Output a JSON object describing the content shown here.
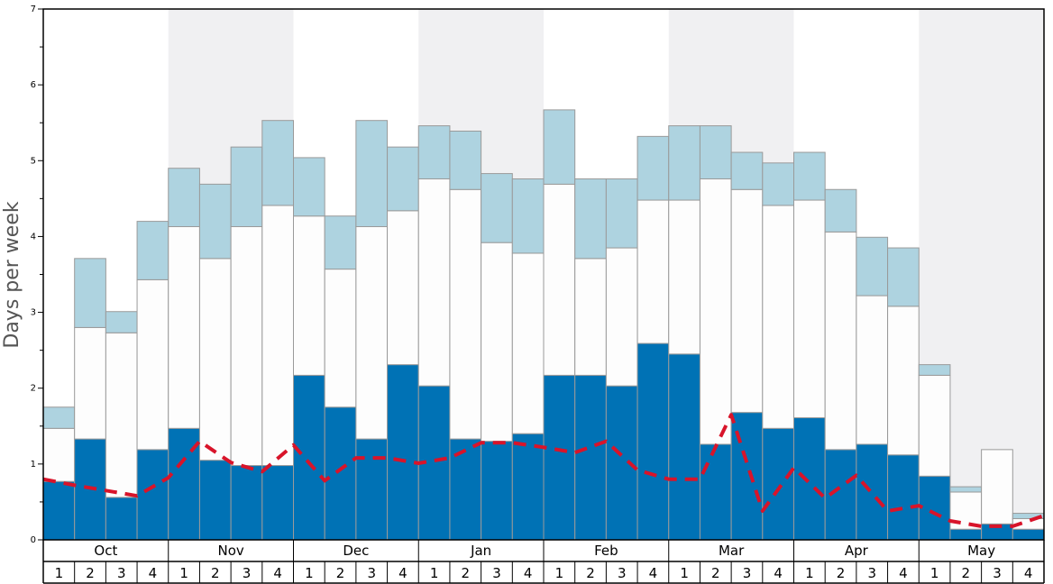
{
  "chart_data": {
    "type": "bar",
    "stacking": "stacked",
    "ylabel": "Days per week",
    "ylim": [
      0,
      7
    ],
    "yticks": [
      "0",
      "1",
      "2",
      "3",
      "4",
      "5",
      "6",
      "7"
    ],
    "months": [
      "Oct",
      "Nov",
      "Dec",
      "Jan",
      "Feb",
      "Mar",
      "Apr",
      "May"
    ],
    "weeks": [
      "1",
      "2",
      "3",
      "4"
    ],
    "series": [
      {
        "name": "bottom",
        "color": "#0072B5",
        "values": [
          0.77,
          1.33,
          0.56,
          1.19,
          1.47,
          1.05,
          0.98,
          0.98,
          2.17,
          1.75,
          1.33,
          2.31,
          2.03,
          1.33,
          1.3,
          1.4,
          2.17,
          2.17,
          2.03,
          2.59,
          2.45,
          1.26,
          1.68,
          1.47,
          1.61,
          1.19,
          1.26,
          1.12,
          0.84,
          0.14,
          0.21,
          0.14
        ]
      },
      {
        "name": "middle",
        "color": "#FDFDFD",
        "values": [
          0.7,
          1.47,
          2.17,
          2.24,
          2.66,
          2.66,
          3.15,
          3.43,
          2.1,
          1.82,
          2.8,
          2.03,
          2.73,
          3.29,
          2.62,
          2.38,
          2.52,
          1.54,
          1.82,
          1.89,
          2.03,
          3.5,
          2.94,
          2.94,
          2.87,
          2.87,
          1.96,
          1.96,
          1.33,
          0.49,
          0.98,
          0.14
        ]
      },
      {
        "name": "top",
        "color": "#AED3E0",
        "values": [
          0.28,
          0.91,
          0.28,
          0.77,
          0.77,
          0.98,
          1.05,
          1.12,
          0.77,
          0.7,
          1.4,
          0.84,
          0.7,
          0.77,
          0.91,
          0.98,
          0.98,
          1.05,
          0.91,
          0.84,
          0.98,
          0.7,
          0.49,
          0.56,
          0.63,
          0.56,
          0.77,
          0.77,
          0.14,
          0.07,
          0.0,
          0.07
        ]
      }
    ],
    "trend_line": {
      "name": "average",
      "color": "#D8142A",
      "style": "dashed",
      "values": [
        0.8,
        0.72,
        0.65,
        0.58,
        0.82,
        1.3,
        1.02,
        0.9,
        1.25,
        0.78,
        1.08,
        1.08,
        1.01,
        1.08,
        1.28,
        1.28,
        1.22,
        1.15,
        1.3,
        0.92,
        0.8,
        0.8,
        1.65,
        0.38,
        0.95,
        0.55,
        0.85,
        0.38,
        0.45,
        0.25,
        0.18,
        0.18,
        0.32
      ]
    },
    "shaded_months": [
      "Nov",
      "Jan",
      "Mar",
      "May"
    ],
    "shade_color": "#F0F0F2",
    "grid": false,
    "legend": "none"
  }
}
